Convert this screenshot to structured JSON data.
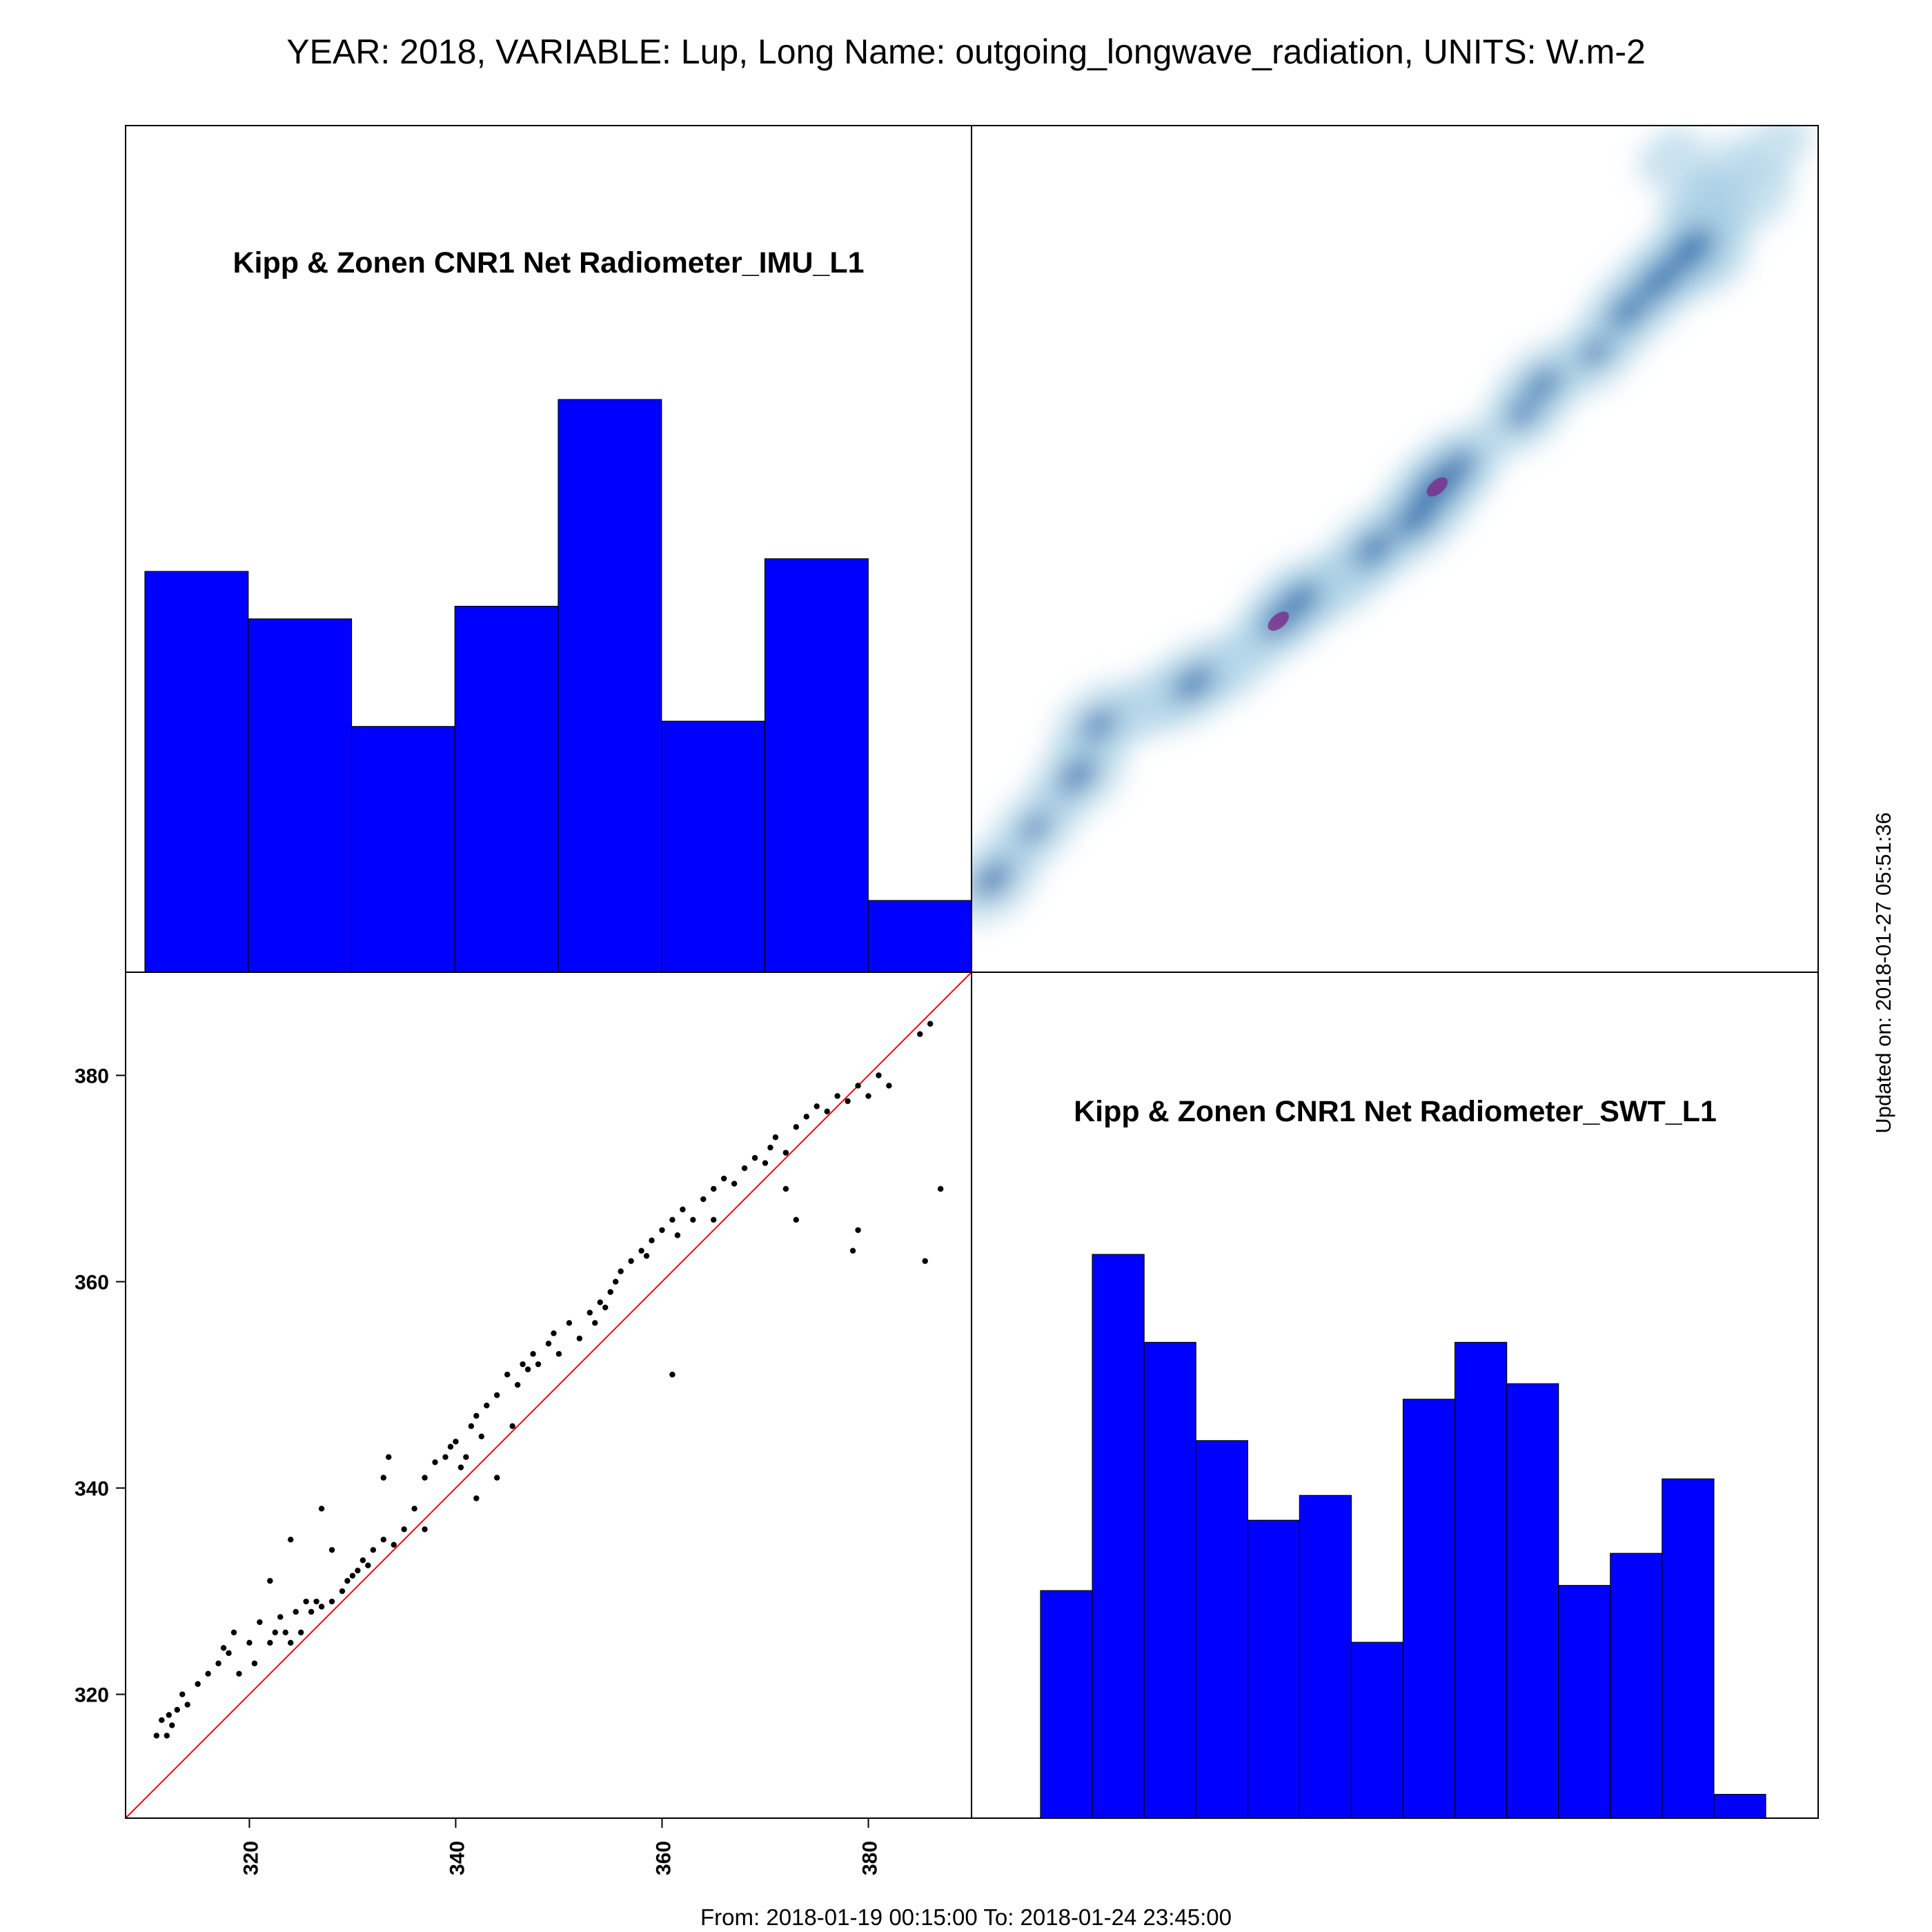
{
  "page": {
    "title": "YEAR: 2018, VARIABLE: Lup, Long Name: outgoing_longwave_radiation, UNITS: W.m-2",
    "updated": "Updated on: 2018-01-27 05:51:36",
    "date_range": "From: 2018-01-19 00:15:00 To: 2018-01-24 23:45:00"
  },
  "colors": {
    "bar_fill": "#0000ff",
    "identity_line": "#ff0000",
    "points": "#000000",
    "density_low": "#9ecae1",
    "density_mid": "#08519c",
    "density_high": "#7a2a8a"
  },
  "chart_data": [
    {
      "type": "bar",
      "panel": "top-left",
      "title": "Kipp & Zonen CNR1 Net Radiometer_IMU_L1",
      "bin_edges": [
        310,
        320,
        330,
        340,
        350,
        360,
        370,
        380,
        390
      ],
      "values": [
        38,
        33.5,
        23.3,
        34.7,
        54.3,
        23.8,
        39.2,
        6.8
      ]
    },
    {
      "type": "heatmap",
      "panel": "top-right",
      "description_of_marks": "2D density of SWT_L1 vs IMU_L1",
      "xlim": [
        310,
        390
      ],
      "ylim": [
        308,
        390
      ],
      "peaks": [
        {
          "x": 312,
          "y": 317,
          "w": 1.0
        },
        {
          "x": 316,
          "y": 322,
          "w": 0.8
        },
        {
          "x": 320,
          "y": 327,
          "w": 1.0
        },
        {
          "x": 322,
          "y": 332,
          "w": 0.9
        },
        {
          "x": 327,
          "y": 334,
          "w": 0.6
        },
        {
          "x": 331,
          "y": 336,
          "w": 1.0
        },
        {
          "x": 335,
          "y": 338,
          "w": 0.6
        },
        {
          "x": 339,
          "y": 342,
          "w": 0.9
        },
        {
          "x": 341,
          "y": 344,
          "w": 1.0
        },
        {
          "x": 345,
          "y": 346,
          "w": 0.7
        },
        {
          "x": 348,
          "y": 349,
          "w": 1.0
        },
        {
          "x": 352,
          "y": 352,
          "w": 1.1
        },
        {
          "x": 354,
          "y": 355,
          "w": 1.2
        },
        {
          "x": 356,
          "y": 357,
          "w": 0.9
        },
        {
          "x": 362,
          "y": 362,
          "w": 0.8
        },
        {
          "x": 364,
          "y": 365,
          "w": 0.9
        },
        {
          "x": 369,
          "y": 368,
          "w": 0.8
        },
        {
          "x": 372,
          "y": 372,
          "w": 1.0
        },
        {
          "x": 375,
          "y": 375,
          "w": 1.1
        },
        {
          "x": 378,
          "y": 378,
          "w": 1.2
        },
        {
          "x": 380,
          "y": 382,
          "w": 0.6
        },
        {
          "x": 380,
          "y": 377,
          "w": 0.5
        },
        {
          "x": 384,
          "y": 383,
          "w": 0.5
        },
        {
          "x": 386,
          "y": 388,
          "w": 0.4
        },
        {
          "x": 376,
          "y": 387,
          "w": 0.3
        },
        {
          "x": 381,
          "y": 386,
          "w": 0.3
        },
        {
          "x": 378,
          "y": 383,
          "w": 0.3
        }
      ]
    },
    {
      "type": "scatter",
      "panel": "bottom-left",
      "xlim": [
        308,
        390
      ],
      "ylim": [
        308,
        390
      ],
      "xticks": [
        320,
        340,
        360,
        380
      ],
      "yticks": [
        320,
        340,
        360,
        380
      ],
      "x": [
        311,
        311.5,
        312,
        312.2,
        312.5,
        313,
        313.5,
        314,
        315,
        316,
        317,
        317.5,
        318,
        318.5,
        319,
        320,
        320.5,
        321,
        322,
        322.5,
        323,
        323.5,
        324,
        324.5,
        325,
        325.5,
        326,
        326.5,
        327,
        328,
        329,
        329.5,
        330,
        330.5,
        331,
        331.5,
        332,
        333,
        333.5,
        334,
        335,
        336,
        337,
        338,
        339,
        339.5,
        340,
        340.5,
        341,
        341.5,
        342,
        342.5,
        343,
        344,
        345,
        346,
        346.5,
        347,
        347.5,
        348,
        349,
        349.5,
        350,
        351,
        352,
        353,
        353.5,
        354,
        354.5,
        355,
        355.5,
        356,
        357,
        358,
        358.5,
        359,
        360,
        361,
        361.5,
        362,
        363,
        364,
        365,
        366,
        367,
        368,
        369,
        370,
        370.5,
        371,
        372,
        373,
        374,
        375,
        376,
        377,
        378,
        379,
        380,
        381,
        382,
        385,
        386,
        387,
        385.5,
        379,
        378.5,
        372,
        373,
        365,
        361,
        345.5,
        344,
        342,
        337,
        333,
        328,
        327,
        324,
        322
      ],
      "y": [
        316,
        317.5,
        316,
        318,
        317,
        318.5,
        320,
        319,
        321,
        322,
        323,
        324.5,
        324,
        326,
        322,
        325,
        323,
        327,
        325,
        326,
        327.5,
        326,
        325,
        328,
        326,
        329,
        328,
        329,
        328.5,
        329,
        330,
        331,
        331.5,
        332,
        333,
        332.5,
        334,
        335,
        343,
        334.5,
        336,
        338,
        341,
        342.5,
        343,
        344,
        344.5,
        342,
        343,
        346,
        347,
        345,
        348,
        349,
        351,
        350,
        352,
        351.5,
        353,
        352,
        354,
        355,
        353,
        356,
        354.5,
        357,
        356,
        358,
        357.5,
        359,
        360,
        361,
        362,
        363,
        362.5,
        364,
        365,
        366,
        364.5,
        367,
        366,
        368,
        369,
        370,
        369.5,
        371,
        372,
        371.5,
        373,
        374,
        372.5,
        375,
        376,
        377,
        376.5,
        378,
        377.5,
        379,
        378,
        380,
        379,
        384,
        385,
        369,
        362,
        365,
        363,
        369,
        366,
        366,
        351,
        346,
        341,
        339,
        336,
        341,
        334,
        338,
        335,
        331
      ]
    },
    {
      "type": "bar",
      "panel": "bottom-right",
      "title": "Kipp & Zonen CNR1 Net Radiometer_SWT_L1",
      "bin_edges": [
        310,
        315,
        320,
        325,
        330,
        335,
        340,
        345,
        350,
        355,
        360,
        365,
        370,
        375,
        380
      ],
      "values": [
        22,
        54.5,
        46,
        36.5,
        28.8,
        31.2,
        17,
        40.5,
        46,
        42,
        22.5,
        25.6,
        32.8,
        2.3
      ]
    }
  ]
}
